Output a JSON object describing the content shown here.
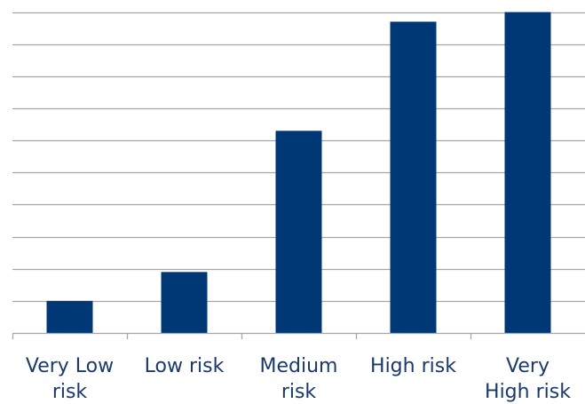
{
  "chart_data": {
    "type": "bar",
    "categories": [
      [
        "Very Low",
        "risk"
      ],
      [
        "Low risk"
      ],
      [
        "Medium",
        "risk"
      ],
      [
        "High risk"
      ],
      [
        "Very",
        "High risk"
      ]
    ],
    "values": [
      1.0,
      1.9,
      6.3,
      9.7,
      10.0
    ],
    "ylim": [
      0,
      10.1
    ],
    "y_gridlines": [
      1,
      2,
      3,
      4,
      5,
      6,
      7,
      8,
      9,
      10
    ],
    "grid": true,
    "legend": "none",
    "title": "",
    "xlabel": "",
    "ylabel": "",
    "colors": {
      "bar": "#003876",
      "grid": "#a6a6a6",
      "axis": "#a6a6a6",
      "label": "#1a3a6b"
    }
  }
}
